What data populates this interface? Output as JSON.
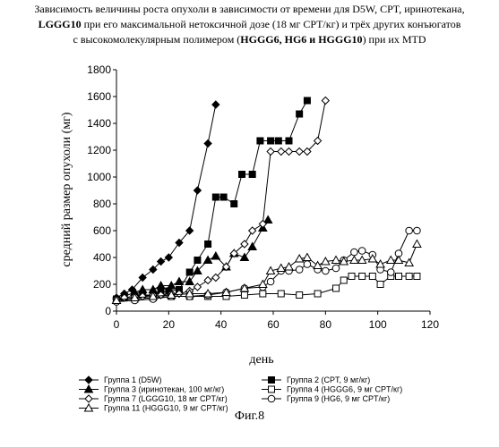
{
  "title": {
    "line1": "Зависимость величины роста опухоли в зависимости от времени для D5W, CPT, иринотекана,",
    "line2_bold": "LGGG10",
    "line2_rest": " при его максимальной нетоксичной дозе (18 мг CPT/кг) и трёх других конъюгатов",
    "line3_start": "с высокомолекулярным полимером (",
    "line3_bold": "HGGG6, HG6 и HGGG10",
    "line3_end": ") при их MTD"
  },
  "figure_caption": "Фиг.8",
  "chart_data": {
    "type": "line",
    "xlabel": "день",
    "ylabel": "средний размер опухоли (мг)",
    "xlim": [
      0,
      120
    ],
    "ylim": [
      0,
      1800
    ],
    "xticks": [
      0,
      20,
      40,
      60,
      80,
      100,
      120
    ],
    "yticks": [
      0,
      200,
      400,
      600,
      800,
      1000,
      1200,
      1400,
      1600,
      1800
    ],
    "grid": false,
    "legend_position": "bottom",
    "series": [
      {
        "name": "Группа 1 (D5W)",
        "marker": "diamond-filled",
        "x": [
          0,
          3,
          6,
          10,
          14,
          17,
          20,
          24,
          28,
          31,
          35,
          38
        ],
        "y": [
          100,
          130,
          160,
          250,
          310,
          370,
          400,
          510,
          600,
          900,
          1250,
          1540
        ]
      },
      {
        "name": "Группа 2 (CPT, 9 мг/кг)",
        "marker": "square-filled",
        "x": [
          0,
          3,
          7,
          10,
          14,
          17,
          20,
          24,
          28,
          31,
          35,
          38,
          41,
          45,
          48,
          52,
          55,
          59,
          62,
          66,
          70,
          73
        ],
        "y": [
          90,
          100,
          110,
          120,
          120,
          140,
          150,
          160,
          290,
          380,
          500,
          850,
          850,
          800,
          1020,
          1020,
          1270,
          1270,
          1270,
          1270,
          1470,
          1570
        ]
      },
      {
        "name": "Группа 3 (иринотекан, 100 мг/кг)",
        "marker": "triangle-filled",
        "x": [
          0,
          3,
          7,
          10,
          14,
          17,
          21,
          24,
          28,
          31,
          35,
          38,
          42,
          45,
          49,
          52,
          56,
          58
        ],
        "y": [
          80,
          110,
          140,
          160,
          160,
          190,
          190,
          220,
          220,
          300,
          380,
          410,
          330,
          430,
          400,
          480,
          620,
          680
        ]
      },
      {
        "name": "Группа 4 (HGGG6, 9 мг CPT/кг)",
        "marker": "square-open",
        "x": [
          0,
          7,
          14,
          21,
          28,
          35,
          42,
          49,
          56,
          63,
          70,
          77,
          84,
          87,
          90,
          94,
          98,
          101,
          105,
          108,
          112,
          115
        ],
        "y": [
          80,
          90,
          100,
          110,
          110,
          110,
          110,
          120,
          130,
          130,
          120,
          130,
          170,
          230,
          260,
          260,
          260,
          200,
          260,
          260,
          260,
          260
        ]
      },
      {
        "name": "Группа 7 (LGGG10, 18 мг CPT/кг)",
        "marker": "diamond-open",
        "x": [
          0,
          3,
          7,
          10,
          14,
          17,
          21,
          24,
          28,
          31,
          35,
          38,
          42,
          45,
          49,
          52,
          56,
          59,
          63,
          66,
          70,
          73,
          77,
          80
        ],
        "y": [
          90,
          100,
          110,
          110,
          120,
          120,
          130,
          130,
          150,
          180,
          230,
          250,
          330,
          430,
          500,
          600,
          650,
          1190,
          1190,
          1190,
          1190,
          1190,
          1270,
          1570
        ]
      },
      {
        "name": "Группа 9 (HG6, 9 мг CPT/кг)",
        "marker": "circle-open",
        "x": [
          0,
          7,
          14,
          21,
          28,
          35,
          42,
          49,
          56,
          59,
          63,
          66,
          70,
          73,
          77,
          80,
          84,
          87,
          91,
          94,
          98,
          101,
          105,
          108,
          112,
          115
        ],
        "y": [
          70,
          80,
          90,
          110,
          110,
          120,
          140,
          170,
          180,
          220,
          300,
          300,
          310,
          350,
          310,
          300,
          320,
          380,
          440,
          450,
          420,
          310,
          290,
          430,
          600,
          600
        ]
      },
      {
        "name": "Группа 11 (HGGG10, 9 мг CPT/кг)",
        "marker": "triangle-open",
        "x": [
          0,
          7,
          14,
          21,
          28,
          35,
          42,
          49,
          56,
          59,
          63,
          66,
          70,
          73,
          77,
          80,
          84,
          87,
          91,
          94,
          98,
          101,
          105,
          108,
          112,
          115
        ],
        "y": [
          80,
          100,
          110,
          120,
          130,
          130,
          140,
          170,
          200,
          300,
          320,
          330,
          390,
          400,
          340,
          370,
          380,
          370,
          380,
          380,
          390,
          350,
          380,
          380,
          360,
          500
        ]
      }
    ]
  }
}
